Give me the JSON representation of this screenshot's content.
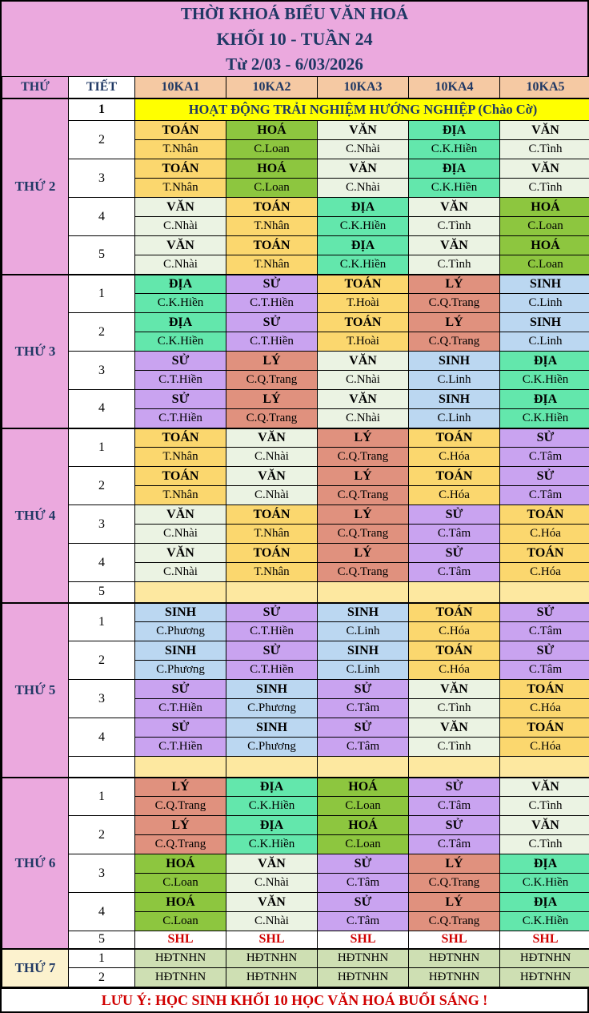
{
  "title": {
    "line1": "THỜI KHOÁ BIỂU VĂN HOÁ",
    "line2": "KHỐI 10 - TUẦN 24",
    "line3": "Từ 2/03 - 6/03/2026"
  },
  "header": {
    "day_col": "THỨ",
    "period_col": "TIẾT",
    "classes": [
      "10KA1",
      "10KA2",
      "10KA3",
      "10KA4",
      "10KA5"
    ]
  },
  "colors": {
    "navy_text": "#1F3864",
    "red_text": "#D00000",
    "pink": "#EBA9DE",
    "cream": "#FCF2CE",
    "peach_header": "#F5C9A3",
    "special_yellow": "#FFFF00",
    "empty_yellow": "#FDE8A0",
    "subjects": {
      "TOÁN": "#FBD76E",
      "HOÁ": "#8DC63F",
      "VĂN": "#EBF3E3",
      "ĐỊA": "#63E7AC",
      "SỬ": "#C9A3F0",
      "LÝ": "#E0917E",
      "SINH": "#BBD7F1"
    },
    "styles": {
      "empty": {
        "bg": "#FDE8A0",
        "class": "empty-cell",
        "name": "empty-cell"
      },
      "shl": {
        "bg": "#FFFFFF",
        "class": "shl-cell",
        "name": "shl-cell"
      },
      "hdtnhn": {
        "bg": "#CEDFB3",
        "class": "hdt-cell",
        "name": "hdtnhn-cell"
      }
    }
  },
  "days": [
    {
      "label": "THỨ 2",
      "label_bg": "#EBA9DE",
      "rows": [
        {
          "kind": "merged",
          "period": "1",
          "period_bold": true,
          "bg": "#FFFF00",
          "text": "HOẠT ĐỘNG TRẢI NGHIỆM HƯỚNG NGHIỆP (Chào Cờ)"
        },
        {
          "kind": "double",
          "period": "2",
          "cells": [
            [
              "TOÁN",
              "T.Nhân"
            ],
            [
              "HOÁ",
              "C.Loan"
            ],
            [
              "VĂN",
              "C.Nhài"
            ],
            [
              "ĐỊA",
              "C.K.Hiền"
            ],
            [
              "VĂN",
              "C.Tình"
            ]
          ]
        },
        {
          "kind": "double",
          "period": "3",
          "cells": [
            [
              "TOÁN",
              "T.Nhân"
            ],
            [
              "HOÁ",
              "C.Loan"
            ],
            [
              "VĂN",
              "C.Nhài"
            ],
            [
              "ĐỊA",
              "C.K.Hiền"
            ],
            [
              "VĂN",
              "C.Tình"
            ]
          ]
        },
        {
          "kind": "double",
          "period": "4",
          "cells": [
            [
              "VĂN",
              "C.Nhài"
            ],
            [
              "TOÁN",
              "T.Nhân"
            ],
            [
              "ĐỊA",
              "C.K.Hiền"
            ],
            [
              "VĂN",
              "C.Tình"
            ],
            [
              "HOÁ",
              "C.Loan"
            ]
          ]
        },
        {
          "kind": "double",
          "period": "5",
          "cells": [
            [
              "VĂN",
              "C.Nhài"
            ],
            [
              "TOÁN",
              "T.Nhân"
            ],
            [
              "ĐỊA",
              "C.K.Hiền"
            ],
            [
              "VĂN",
              "C.Tình"
            ],
            [
              "HOÁ",
              "C.Loan"
            ]
          ]
        }
      ]
    },
    {
      "label": "THỨ 3",
      "label_bg": "#EBA9DE",
      "rows": [
        {
          "kind": "double",
          "period": "1",
          "cells": [
            [
              "ĐỊA",
              "C.K.Hiền"
            ],
            [
              "SỬ",
              "C.T.Hiền"
            ],
            [
              "TOÁN",
              "T.Hoài"
            ],
            [
              "LÝ",
              "C.Q.Trang"
            ],
            [
              "SINH",
              "C.Linh"
            ]
          ]
        },
        {
          "kind": "double",
          "period": "2",
          "cells": [
            [
              "ĐỊA",
              "C.K.Hiền"
            ],
            [
              "SỬ",
              "C.T.Hiền"
            ],
            [
              "TOÁN",
              "T.Hoài"
            ],
            [
              "LÝ",
              "C.Q.Trang"
            ],
            [
              "SINH",
              "C.Linh"
            ]
          ]
        },
        {
          "kind": "double",
          "period": "3",
          "cells": [
            [
              "SỬ",
              "C.T.Hiền"
            ],
            [
              "LÝ",
              "C.Q.Trang"
            ],
            [
              "VĂN",
              "C.Nhài"
            ],
            [
              "SINH",
              "C.Linh"
            ],
            [
              "ĐỊA",
              "C.K.Hiền"
            ]
          ]
        },
        {
          "kind": "double",
          "period": "4",
          "cells": [
            [
              "SỬ",
              "C.T.Hiền"
            ],
            [
              "LÝ",
              "C.Q.Trang"
            ],
            [
              "VĂN",
              "C.Nhài"
            ],
            [
              "SINH",
              "C.Linh"
            ],
            [
              "ĐỊA",
              "C.K.Hiền"
            ]
          ]
        }
      ]
    },
    {
      "label": "THỨ 4",
      "label_bg": "#EBA9DE",
      "rows": [
        {
          "kind": "double",
          "period": "1",
          "cells": [
            [
              "TOÁN",
              "T.Nhân"
            ],
            [
              "VĂN",
              "C.Nhài"
            ],
            [
              "LÝ",
              "C.Q.Trang"
            ],
            [
              "TOÁN",
              "C.Hóa"
            ],
            [
              "SỬ",
              "C.Tâm"
            ]
          ]
        },
        {
          "kind": "double",
          "period": "2",
          "cells": [
            [
              "TOÁN",
              "T.Nhân"
            ],
            [
              "VĂN",
              "C.Nhài"
            ],
            [
              "LÝ",
              "C.Q.Trang"
            ],
            [
              "TOÁN",
              "C.Hóa"
            ],
            [
              "SỬ",
              "C.Tâm"
            ]
          ]
        },
        {
          "kind": "double",
          "period": "3",
          "cells": [
            [
              "VĂN",
              "C.Nhài"
            ],
            [
              "TOÁN",
              "T.Nhân"
            ],
            [
              "LÝ",
              "C.Q.Trang"
            ],
            [
              "SỬ",
              "C.Tâm"
            ],
            [
              "TOÁN",
              "C.Hóa"
            ]
          ]
        },
        {
          "kind": "double",
          "period": "4",
          "cells": [
            [
              "VĂN",
              "C.Nhài"
            ],
            [
              "TOÁN",
              "T.Nhân"
            ],
            [
              "LÝ",
              "C.Q.Trang"
            ],
            [
              "SỬ",
              "C.Tâm"
            ],
            [
              "TOÁN",
              "C.Hóa"
            ]
          ]
        },
        {
          "kind": "single",
          "period": "5",
          "style": "empty",
          "cells": [
            "",
            "",
            "",
            "",
            ""
          ]
        }
      ]
    },
    {
      "label": "THỨ 5",
      "label_bg": "#EBA9DE",
      "rows": [
        {
          "kind": "double",
          "period": "1",
          "cells": [
            [
              "SINH",
              "C.Phương"
            ],
            [
              "SỬ",
              "C.T.Hiền"
            ],
            [
              "SINH",
              "C.Linh"
            ],
            [
              "TOÁN",
              "C.Hóa"
            ],
            [
              "SỬ",
              "C.Tâm"
            ]
          ]
        },
        {
          "kind": "double",
          "period": "2",
          "cells": [
            [
              "SINH",
              "C.Phương"
            ],
            [
              "SỬ",
              "C.T.Hiền"
            ],
            [
              "SINH",
              "C.Linh"
            ],
            [
              "TOÁN",
              "C.Hóa"
            ],
            [
              "SỬ",
              "C.Tâm"
            ]
          ]
        },
        {
          "kind": "double",
          "period": "3",
          "cells": [
            [
              "SỬ",
              "C.T.Hiền"
            ],
            [
              "SINH",
              "C.Phương"
            ],
            [
              "SỬ",
              "C.Tâm"
            ],
            [
              "VĂN",
              "C.Tình"
            ],
            [
              "TOÁN",
              "C.Hóa"
            ]
          ]
        },
        {
          "kind": "double",
          "period": "4",
          "cells": [
            [
              "SỬ",
              "C.T.Hiền"
            ],
            [
              "SINH",
              "C.Phương"
            ],
            [
              "SỬ",
              "C.Tâm"
            ],
            [
              "VĂN",
              "C.Tình"
            ],
            [
              "TOÁN",
              "C.Hóa"
            ]
          ]
        },
        {
          "kind": "single",
          "period": "",
          "style": "empty",
          "cells": [
            "",
            "",
            "",
            "",
            ""
          ]
        }
      ]
    },
    {
      "label": "THỨ 6",
      "label_bg": "#EBA9DE",
      "rows": [
        {
          "kind": "double",
          "period": "1",
          "cells": [
            [
              "LÝ",
              "C.Q.Trang"
            ],
            [
              "ĐỊA",
              "C.K.Hiền"
            ],
            [
              "HOÁ",
              "C.Loan"
            ],
            [
              "SỬ",
              "C.Tâm"
            ],
            [
              "VĂN",
              "C.Tình"
            ]
          ]
        },
        {
          "kind": "double",
          "period": "2",
          "cells": [
            [
              "LÝ",
              "C.Q.Trang"
            ],
            [
              "ĐỊA",
              "C.K.Hiền"
            ],
            [
              "HOÁ",
              "C.Loan"
            ],
            [
              "SỬ",
              "C.Tâm"
            ],
            [
              "VĂN",
              "C.Tình"
            ]
          ]
        },
        {
          "kind": "double",
          "period": "3",
          "cells": [
            [
              "HOÁ",
              "C.Loan"
            ],
            [
              "VĂN",
              "C.Nhài"
            ],
            [
              "SỬ",
              "C.Tâm"
            ],
            [
              "LÝ",
              "C.Q.Trang"
            ],
            [
              "ĐỊA",
              "C.K.Hiền"
            ]
          ]
        },
        {
          "kind": "double",
          "period": "4",
          "cells": [
            [
              "HOÁ",
              "C.Loan"
            ],
            [
              "VĂN",
              "C.Nhài"
            ],
            [
              "SỬ",
              "C.Tâm"
            ],
            [
              "LÝ",
              "C.Q.Trang"
            ],
            [
              "ĐỊA",
              "C.K.Hiền"
            ]
          ]
        },
        {
          "kind": "single",
          "period": "5",
          "style": "shl",
          "cells": [
            "SHL",
            "SHL",
            "SHL",
            "SHL",
            "SHL"
          ]
        }
      ]
    },
    {
      "label": "THỨ 7",
      "label_bg": "#FCF2CE",
      "rows": [
        {
          "kind": "single",
          "period": "1",
          "style": "hdtnhn",
          "cells": [
            "HĐTNHN",
            "HĐTNHN",
            "HĐTNHN",
            "HĐTNHN",
            "HĐTNHN"
          ]
        },
        {
          "kind": "single",
          "period": "2",
          "style": "hdtnhn",
          "cells": [
            "HĐTNHN",
            "HĐTNHN",
            "HĐTNHN",
            "HĐTNHN",
            "HĐTNHN"
          ]
        }
      ]
    }
  ],
  "footer": "LƯU Ý:  HỌC SINH KHỐI 10 HỌC VĂN HOÁ BUỔI SÁNG !"
}
